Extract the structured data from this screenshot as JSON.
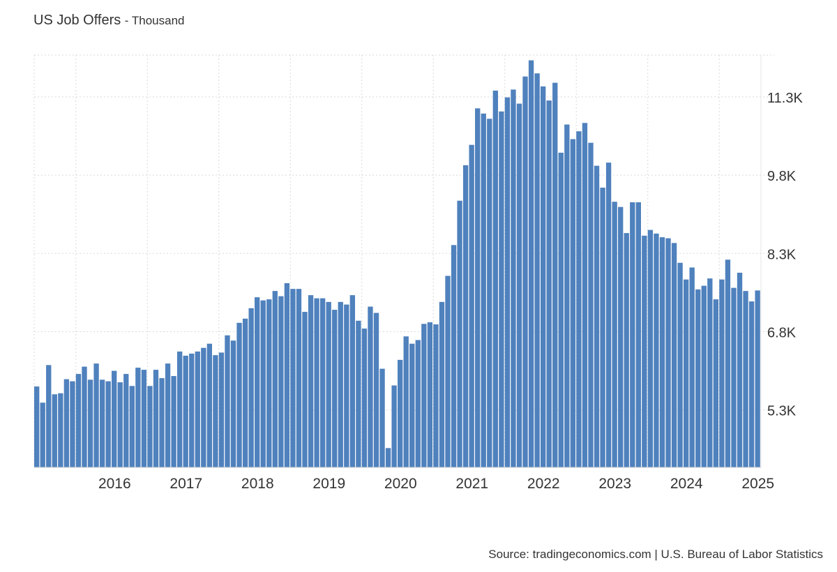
{
  "title": "US Job Offers",
  "subtitle": "Thousand",
  "source": "Source: tradingeconomics.com | U.S. Bureau of Labor Statistics",
  "colors": {
    "bar": "#4f81bd",
    "grid": "#d9d9d9",
    "text": "#333333"
  },
  "chart_data": {
    "type": "bar",
    "frequency": "monthly",
    "start": "2015-06",
    "end": "2025-05",
    "ylim": [
      4200,
      12100
    ],
    "y_ticks": [
      5300,
      6800,
      8300,
      9800,
      11300
    ],
    "y_tick_labels": [
      "5.3K",
      "6.8K",
      "8.3K",
      "9.8K",
      "11.3K"
    ],
    "y_axis_position": "right",
    "x_tick_labels": [
      "2016",
      "2017",
      "2018",
      "2019",
      "2020",
      "2021",
      "2022",
      "2023",
      "2024",
      "2025"
    ],
    "grid": true,
    "values": [
      5750,
      5440,
      6160,
      5600,
      5620,
      5890,
      5850,
      5990,
      6130,
      5880,
      6190,
      5880,
      5850,
      6050,
      5830,
      5990,
      5760,
      6110,
      6070,
      5760,
      6070,
      5910,
      6190,
      5950,
      6420,
      6340,
      6380,
      6420,
      6490,
      6570,
      6350,
      6400,
      6730,
      6630,
      6970,
      7050,
      7250,
      7460,
      7400,
      7420,
      7580,
      7480,
      7730,
      7620,
      7620,
      7180,
      7500,
      7440,
      7440,
      7370,
      7220,
      7370,
      7320,
      7500,
      7010,
      6860,
      7280,
      7160,
      6090,
      4570,
      5770,
      6260,
      6710,
      6570,
      6640,
      6950,
      6980,
      6940,
      7370,
      7870,
      8460,
      9310,
      9990,
      10380,
      11080,
      10980,
      10880,
      11420,
      11020,
      11290,
      11440,
      11170,
      11690,
      12000,
      11750,
      11500,
      11230,
      11570,
      10230,
      10770,
      10490,
      10640,
      10800,
      10420,
      9980,
      9560,
      10040,
      9290,
      9190,
      8690,
      9280,
      9280,
      8640,
      8750,
      8680,
      8610,
      8590,
      8500,
      8120,
      7800,
      8030,
      7610,
      7680,
      7820,
      7420,
      7800,
      8180,
      7640,
      7930,
      7580,
      7380,
      7590
    ]
  }
}
